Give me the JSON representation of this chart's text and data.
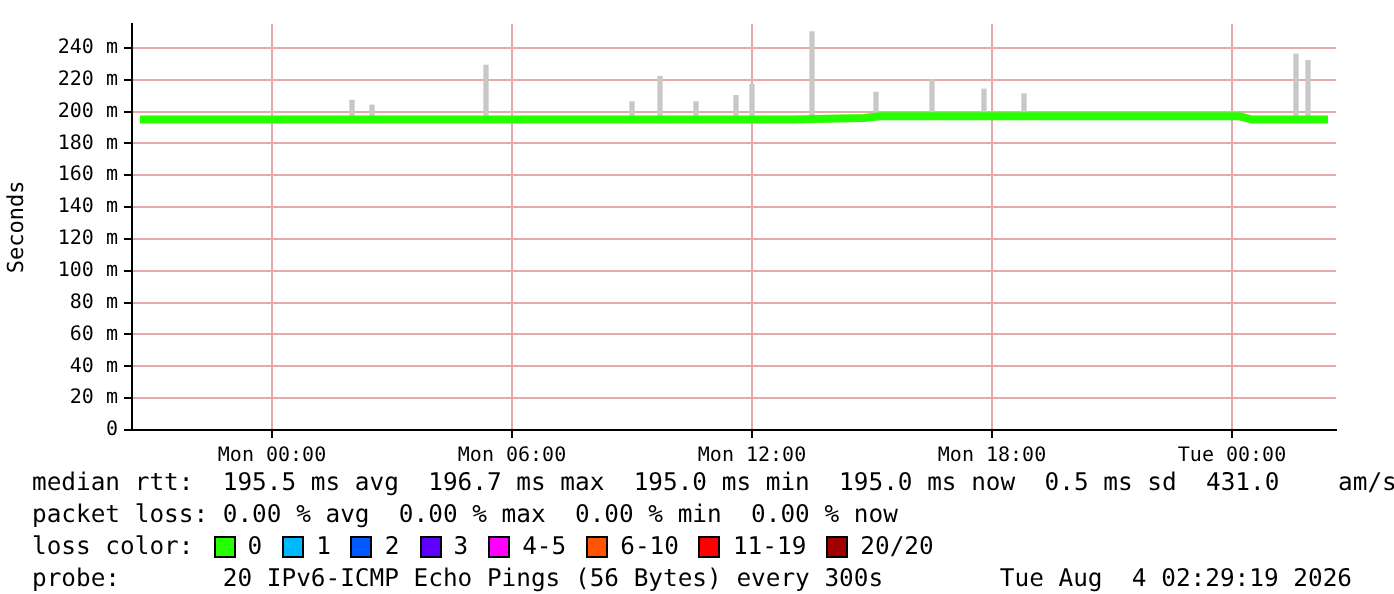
{
  "chart_data": {
    "type": "line",
    "ylabel": "Seconds",
    "xlim": [
      "2026-08-02T20:30",
      "2026-08-04T02:36"
    ],
    "xticks": [
      {
        "value": "2026-08-03T00:00",
        "label": "Mon 00:00"
      },
      {
        "value": "2026-08-03T06:00",
        "label": "Mon 06:00"
      },
      {
        "value": "2026-08-03T12:00",
        "label": "Mon 12:00"
      },
      {
        "value": "2026-08-03T18:00",
        "label": "Mon 18:00"
      },
      {
        "value": "2026-08-04T00:00",
        "label": "Tue 00:00"
      }
    ],
    "ylim": [
      0,
      255
    ],
    "yticks": [
      0,
      {
        "value": 20,
        "label": "20 m"
      },
      {
        "value": 40,
        "label": "40 m"
      },
      {
        "value": 60,
        "label": "60 m"
      },
      {
        "value": 80,
        "label": "80 m"
      },
      {
        "value": 100,
        "label": "100 m"
      },
      {
        "value": 120,
        "label": "120 m"
      },
      {
        "value": 140,
        "label": "140 m"
      },
      {
        "value": 160,
        "label": "160 m"
      },
      {
        "value": 180,
        "label": "180 m"
      },
      {
        "value": 200,
        "label": "200 m"
      },
      {
        "value": 220,
        "label": "220 m"
      },
      {
        "value": 240,
        "label": "240 m"
      }
    ],
    "grid": true,
    "legend": "bottom",
    "legend_title": "loss color:",
    "marker": "none",
    "line_style": "solid",
    "series": [
      {
        "type": "bar",
        "color": "#c8c8c8",
        "x": [
          "2026-08-03T02:00",
          "2026-08-03T02:30",
          "2026-08-03T05:21",
          "2026-08-03T09:00",
          "2026-08-03T09:42",
          "2026-08-03T10:36",
          "2026-08-03T11:36",
          "2026-08-03T12:00",
          "2026-08-03T13:30",
          "2026-08-03T15:06",
          "2026-08-03T16:30",
          "2026-08-03T17:48",
          "2026-08-03T18:48",
          "2026-08-04T01:36",
          "2026-08-04T01:54"
        ],
        "base": [
          195,
          195,
          195,
          195,
          195,
          195,
          195,
          195,
          195,
          195,
          195,
          195,
          195,
          195,
          195
        ],
        "values": [
          12,
          9,
          34,
          11,
          27,
          11,
          15,
          22,
          55,
          17,
          25,
          19,
          16,
          41,
          37
        ]
      },
      {
        "name": "0",
        "color": "#26ff00",
        "x": [
          "2026-08-02T20:42",
          "2026-08-03T01:30",
          "2026-08-03T03:00",
          "2026-08-03T06:00",
          "2026-08-03T09:30",
          "2026-08-03T11:00",
          "2026-08-03T13:00",
          "2026-08-03T14:48",
          "2026-08-03T15:12",
          "2026-08-03T18:00",
          "2026-08-03T21:00",
          "2026-08-04T00:12",
          "2026-08-04T00:30",
          "2026-08-04T02:24"
        ],
        "values": [
          195,
          195,
          195,
          195,
          195,
          195,
          195,
          196,
          197,
          197,
          197,
          197,
          195,
          195
        ]
      },
      {
        "name": "1",
        "color": "#00b8ff"
      },
      {
        "name": "2",
        "color": "#0059ff"
      },
      {
        "name": "3",
        "color": "#5e00ff"
      },
      {
        "name": "4-5",
        "color": "#ff00ff"
      },
      {
        "name": "6-10",
        "color": "#ff5500"
      },
      {
        "name": "11-19",
        "color": "#ff0000"
      },
      {
        "name": "20/20",
        "color": "#a10000"
      }
    ],
    "annotations": [
      "median rtt:  195.5 ms avg  196.7 ms max  195.0 ms min  195.0 ms now  0.5 ms sd  431.0    am/s",
      "packet loss: 0.00 % avg  0.00 % max  0.00 % min  0.00 % now",
      "probe:       20 IPv6-ICMP Echo Pings (56 Bytes) every 300s",
      "Tue Aug  4 02:29:19 2026"
    ]
  }
}
